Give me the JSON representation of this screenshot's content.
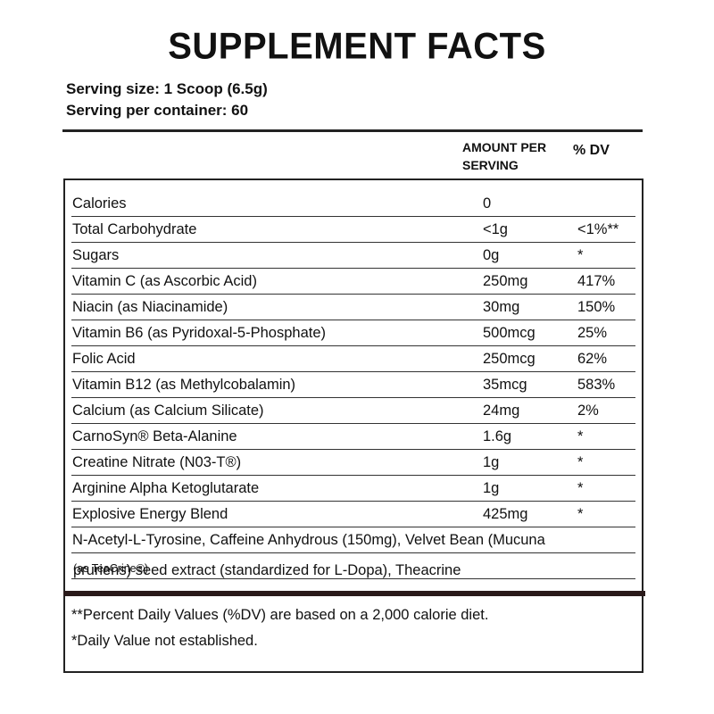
{
  "title": "SUPPLEMENT FACTS",
  "serving_size": "Serving size: 1 Scoop (6.5g)",
  "servings_per_container": "Serving per container:  60",
  "headers": {
    "amount_line1": "AMOUNT PER",
    "amount_line2": "SERVING",
    "dv": "% DV"
  },
  "rows": [
    {
      "name": "Calories",
      "amount": "0",
      "dv": ""
    },
    {
      "name": "Total Carbohydrate",
      "amount": "<1g",
      "dv": "<1%**"
    },
    {
      "name": "Sugars",
      "amount": "0g",
      "dv": "*"
    },
    {
      "name": "Vitamin C (as Ascorbic Acid)",
      "amount": "250mg",
      "dv": "417%"
    },
    {
      "name": "Niacin (as Niacinamide)",
      "amount": "30mg",
      "dv": "150%"
    },
    {
      "name": "Vitamin B6 (as Pyridoxal-5-Phosphate)",
      "amount": "500mcg",
      "dv": "25%"
    },
    {
      "name": "Folic Acid",
      "amount": "250mcg",
      "dv": "62%"
    },
    {
      "name": "Vitamin B12 (as Methylcobalamin)",
      "amount": "35mcg",
      "dv": "583%"
    },
    {
      "name": "Calcium (as Calcium Silicate)",
      "amount": "24mg",
      "dv": "2%"
    },
    {
      "name": "CarnoSyn® Beta-Alanine",
      "amount": "1.6g",
      "dv": "*"
    },
    {
      "name": "Creatine Nitrate (N03-T®)",
      "amount": "1g",
      "dv": "*"
    },
    {
      "name": "Arginine Alpha Ketoglutarate",
      "amount": "1g",
      "dv": "*"
    },
    {
      "name": "Explosive Energy Blend",
      "amount": "425mg",
      "dv": "*"
    }
  ],
  "blend": {
    "line1": "N-Acetyl-L-Tyrosine, Caffeine Anhydrous (150mg), Velvet Bean (Mucuna",
    "line2": "pruriens) seed extract (standardized for L-Dopa), Theacrine",
    "line2_small": "(as TeaCrine®)"
  },
  "footnotes": [
    "**Percent Daily Values (%DV) are based on a 2,000 calorie diet.",
    "*Daily Value not established."
  ]
}
